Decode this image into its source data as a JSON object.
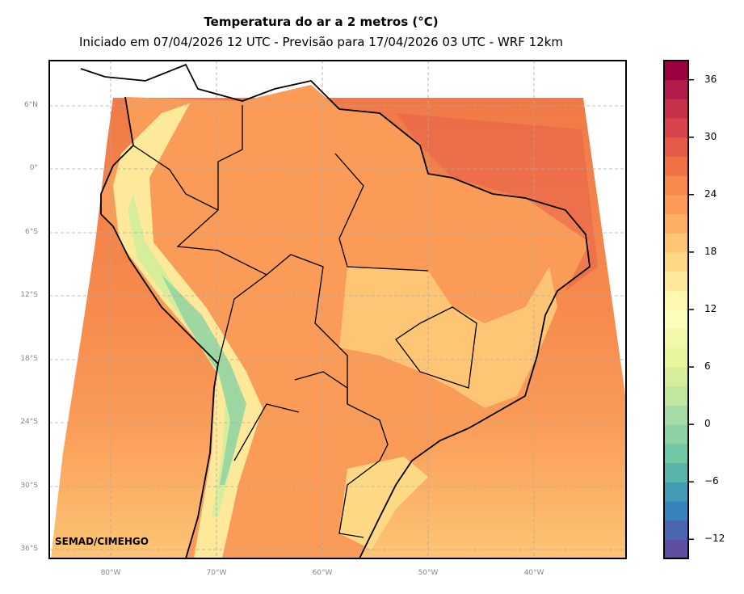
{
  "title": "Temperatura do ar a 2 metros (°C)",
  "subtitle": "Iniciado em 07/04/2026 12 UTC - Previsão para 17/04/2026 03 UTC - WRF 12km",
  "credit": "SEMAD/CIMEHGO",
  "lat_labels": [
    "6°N",
    "0°",
    "6°S",
    "12°S",
    "18°S",
    "24°S",
    "30°S",
    "36°S"
  ],
  "lon_labels": [
    "80°W",
    "70°W",
    "60°W",
    "50°W",
    "40°W"
  ],
  "colorbar": {
    "min": -14,
    "max": 38,
    "step": 2,
    "tick_labels": [
      "36",
      "30",
      "24",
      "18",
      "12",
      "6",
      "0",
      "−6",
      "−12"
    ],
    "colors": [
      "#5e4fa2",
      "#4b65af",
      "#3682ba",
      "#439bb5",
      "#59b4aa",
      "#72c7a4",
      "#8dd1a4",
      "#a7dca4",
      "#c0e6a0",
      "#d6ee9b",
      "#e8f69c",
      "#f1f9a9",
      "#fbfdba",
      "#fef7b0",
      "#fee89a",
      "#fed985",
      "#fdc574",
      "#fdaf62",
      "#fa9b58",
      "#f68a4c",
      "#f07046",
      "#e55a49",
      "#d8434e",
      "#c6304b",
      "#b11c4a",
      "#9e0142"
    ]
  }
}
